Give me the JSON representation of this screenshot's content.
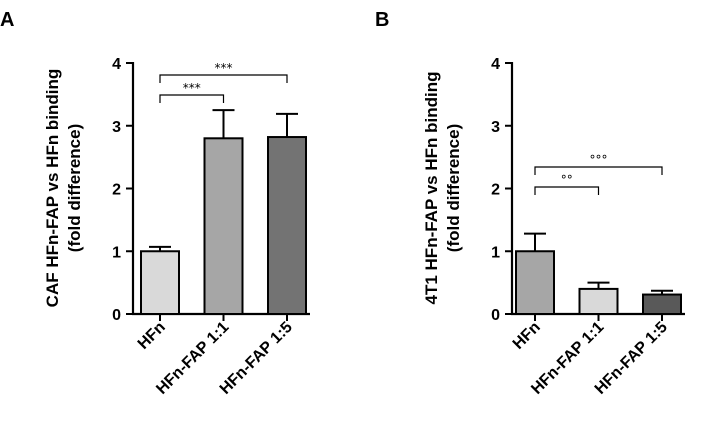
{
  "chart_data": [
    {
      "panel": "A",
      "type": "bar",
      "ylabel_line1": "CAF HFn-FAP vs HFn binding",
      "ylabel_line2": "(fold difference)",
      "ylim": [
        0,
        4
      ],
      "yticks": [
        0,
        1,
        2,
        3,
        4
      ],
      "categories": [
        "HFn",
        "HFn-FAP 1:1",
        "HFn-FAP 1:5"
      ],
      "values": [
        1.0,
        2.8,
        2.82
      ],
      "errors": [
        0.07,
        0.45,
        0.37
      ],
      "colors": [
        "#d9d9d9",
        "#a6a6a6",
        "#737373"
      ],
      "significance": [
        {
          "from": 0,
          "to": 1,
          "label": "***"
        },
        {
          "from": 0,
          "to": 2,
          "label": "***"
        }
      ]
    },
    {
      "panel": "B",
      "type": "bar",
      "ylabel_line1": "4T1 HFn-FAP vs HFn binding",
      "ylabel_line2": "(fold difference)",
      "ylim": [
        0,
        4
      ],
      "yticks": [
        0,
        1,
        2,
        3,
        4
      ],
      "categories": [
        "HFn",
        "HFn-FAP 1:1",
        "HFn-FAP 1:5"
      ],
      "values": [
        1.0,
        0.4,
        0.31
      ],
      "errors": [
        0.28,
        0.1,
        0.06
      ],
      "colors": [
        "#a6a6a6",
        "#d9d9d9",
        "#595959"
      ],
      "significance": [
        {
          "from": 0,
          "to": 1,
          "label": "°°"
        },
        {
          "from": 0,
          "to": 2,
          "label": "°°°"
        }
      ]
    }
  ]
}
